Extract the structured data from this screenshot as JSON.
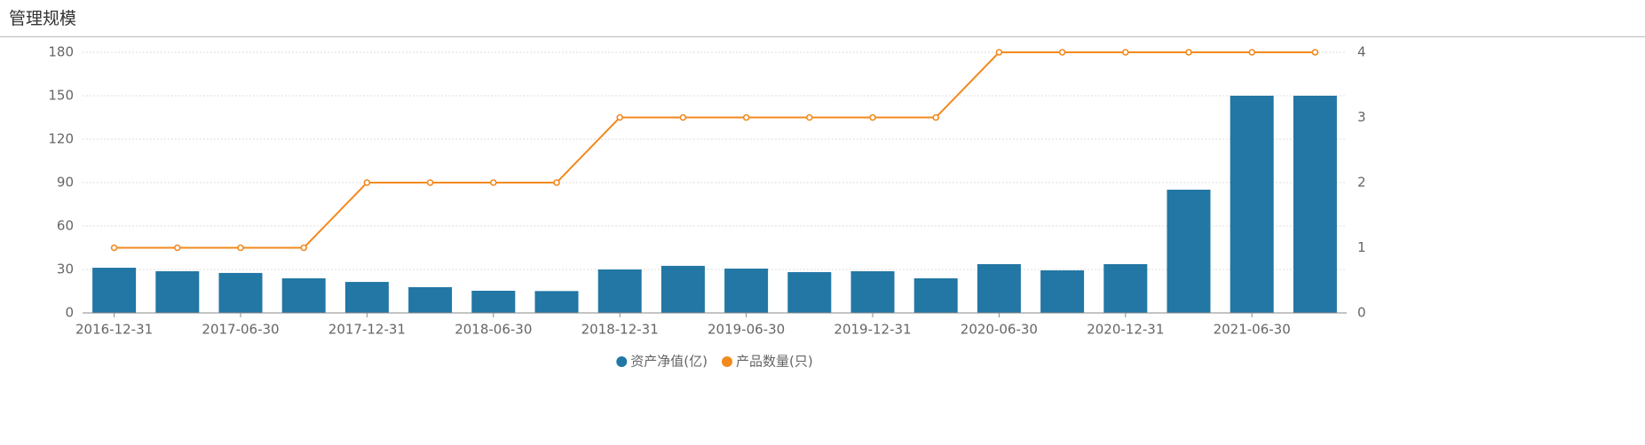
{
  "title": "管理规模",
  "chart_data": {
    "type": "bar-line",
    "categories": [
      "2016-12-31",
      null,
      "2017-06-30",
      null,
      "2017-12-31",
      null,
      "2018-06-30",
      null,
      "2018-12-31",
      null,
      "2019-06-30",
      null,
      "2019-12-31",
      null,
      "2020-06-30",
      null,
      "2020-12-31",
      null,
      "2021-06-30",
      null
    ],
    "series": [
      {
        "name": "资产净值(亿)",
        "color": "#2277a4",
        "type": "bar",
        "values": [
          31.2,
          28.8,
          27.6,
          23.9,
          21.4,
          17.8,
          15.3,
          15.1,
          30,
          32.5,
          30.6,
          28.2,
          28.8,
          23.9,
          33.7,
          29.4,
          33.7,
          85.1,
          150,
          150
        ]
      },
      {
        "name": "产品数量(只)",
        "color": "#f28a1e",
        "type": "line",
        "axis": "y2",
        "values": [
          1,
          1,
          1,
          1,
          2,
          2,
          2,
          2,
          3,
          3,
          3,
          3,
          3,
          3,
          4,
          4,
          4,
          4,
          4,
          4
        ]
      }
    ],
    "ylim": [
      0,
      180
    ],
    "yticks": [
      0,
      30,
      60,
      90,
      120,
      150,
      180
    ],
    "y2lim": [
      0,
      4
    ],
    "y2ticks": [
      0,
      1,
      2,
      3,
      4
    ],
    "grid": true,
    "legend": "bottom"
  }
}
